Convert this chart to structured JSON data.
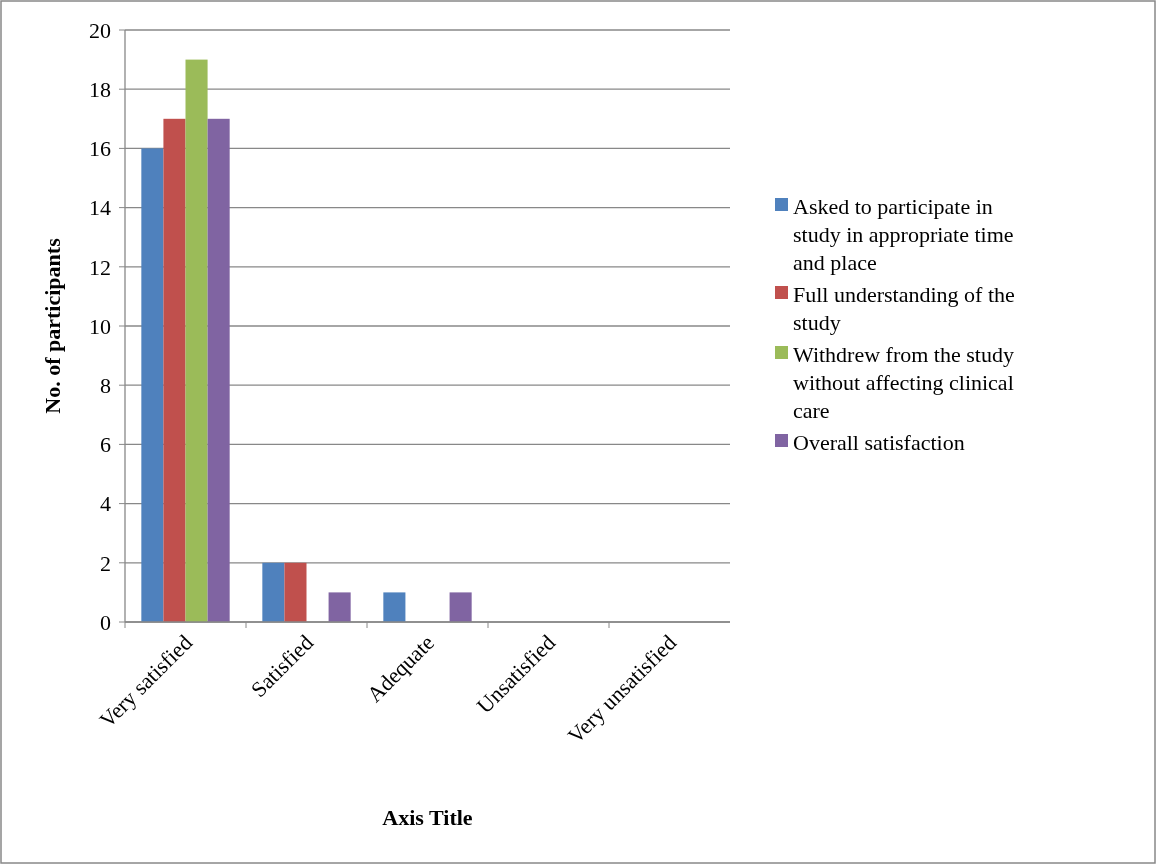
{
  "chart_data": {
    "type": "bar",
    "xlabel": "Axis Title",
    "ylabel": "No. of participants",
    "categories": [
      "Very satisfied",
      "Satisfied",
      "Adequate",
      "Unsatisfied",
      "Very unsatisfied"
    ],
    "series": [
      {
        "name": "Asked to participate in study in appropriate time and place",
        "color": "#4f81bd",
        "values": [
          16,
          2,
          1,
          0,
          0
        ]
      },
      {
        "name": "Full understanding of the study",
        "color": "#c0504d",
        "values": [
          17,
          2,
          0,
          0,
          0
        ]
      },
      {
        "name": "Withdrew from the study without affecting clinical care",
        "color": "#9bbb59",
        "values": [
          19,
          0,
          0,
          0,
          0
        ]
      },
      {
        "name": "Overall satisfaction",
        "color": "#8064a2",
        "values": [
          17,
          1,
          1,
          0,
          0
        ]
      }
    ],
    "ylim": [
      0,
      20
    ],
    "yticks": [
      0,
      2,
      4,
      6,
      8,
      10,
      12,
      14,
      16,
      18,
      20
    ],
    "grid": "y",
    "legend": "right"
  }
}
